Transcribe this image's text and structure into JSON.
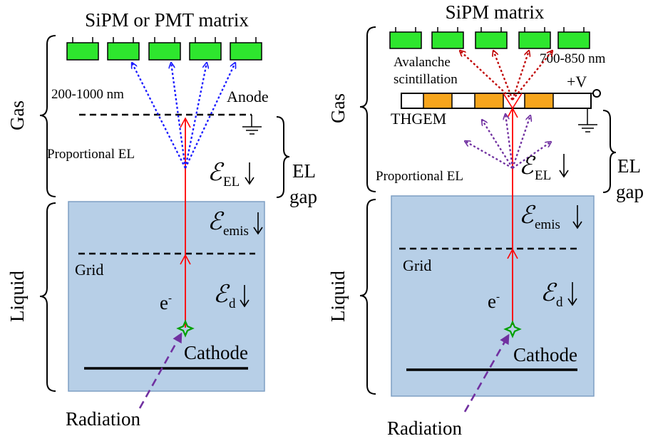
{
  "left_panel": {
    "title": "SiPM or PMT matrix",
    "wavelength": "200-1000 nm",
    "anode": "Anode",
    "gas": "Gas",
    "proportional_el": "Proportional EL",
    "el_field_sub": "EL",
    "el_gap_line1": "EL",
    "el_gap_line2": "gap",
    "liquid": "Liquid",
    "emis_field_sub": "emis",
    "grid": "Grid",
    "electron": "e",
    "electron_sup": "-",
    "drift_field_sub": "d",
    "cathode": "Cathode",
    "radiation": "Radiation",
    "field_symbol": "ℰ"
  },
  "right_panel": {
    "title": "SiPM matrix",
    "avalanche_line1": "Avalanche",
    "avalanche_line2": "scintillation",
    "wavelength": "700-850 nm",
    "voltage": "+V",
    "thgem": "THGEM",
    "gas": "Gas",
    "proportional_el": "Proportional EL",
    "el_field_sub": "EL",
    "el_gap_line1": "EL",
    "el_gap_line2": "gap",
    "liquid": "Liquid",
    "emis_field_sub": "emis",
    "grid": "Grid",
    "electron": "e",
    "electron_sup": "-",
    "drift_field_sub": "d",
    "cathode": "Cathode",
    "radiation": "Radiation",
    "field_symbol": "ℰ"
  },
  "colors": {
    "liquid_fill": "#b7cfe7",
    "liquid_stroke": "#7f9fc4",
    "sensor_green": "#2ee62e",
    "thgem_orange": "#f7a51c",
    "electron_track": "#ff0000",
    "el_photons": "#1a1aff",
    "avalanche_photons": "#c00000",
    "proportional_photons": "#7030a0",
    "radiation": "#7030a0",
    "star": "#00a000"
  }
}
